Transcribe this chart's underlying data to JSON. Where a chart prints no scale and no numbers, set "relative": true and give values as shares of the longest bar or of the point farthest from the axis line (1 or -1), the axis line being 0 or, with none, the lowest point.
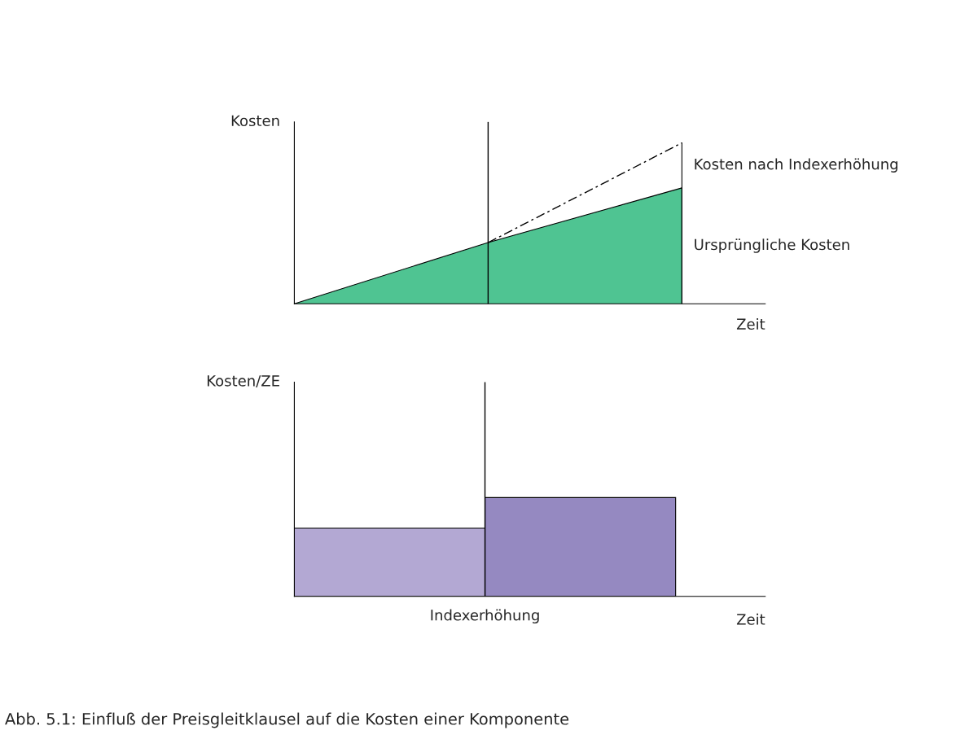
{
  "chart_data": [
    {
      "type": "area",
      "relative": true,
      "ylabel": "Kosten",
      "xlabel": "Zeit",
      "categories": [
        null,
        null,
        null
      ],
      "legend": false,
      "marker": "none",
      "series": [
        {
          "name": "Kosten nach Indexerhöhung",
          "type": "line",
          "line_style": "dashed",
          "color": "#000000",
          "values": [
            null,
            0.38,
            1
          ]
        },
        {
          "name": "Ursprüngliche Kosten",
          "type": "area",
          "color": "#14b06e",
          "values": [
            0,
            0.38,
            0.72
          ]
        }
      ]
    },
    {
      "type": "bar",
      "relative": true,
      "ylabel": "Kosten/ZE",
      "xlabel": "Zeit",
      "categories": [
        null,
        null
      ],
      "legend": false,
      "values": [
        0.69,
        1
      ],
      "colors": [
        "#b3a8d3",
        "#9589c1"
      ],
      "annotations": [
        "Indexerhöhung",
        "Abb. 5.1: Einfluß der Preisgleitklausel auf die Kosten einer Komponente"
      ]
    }
  ]
}
